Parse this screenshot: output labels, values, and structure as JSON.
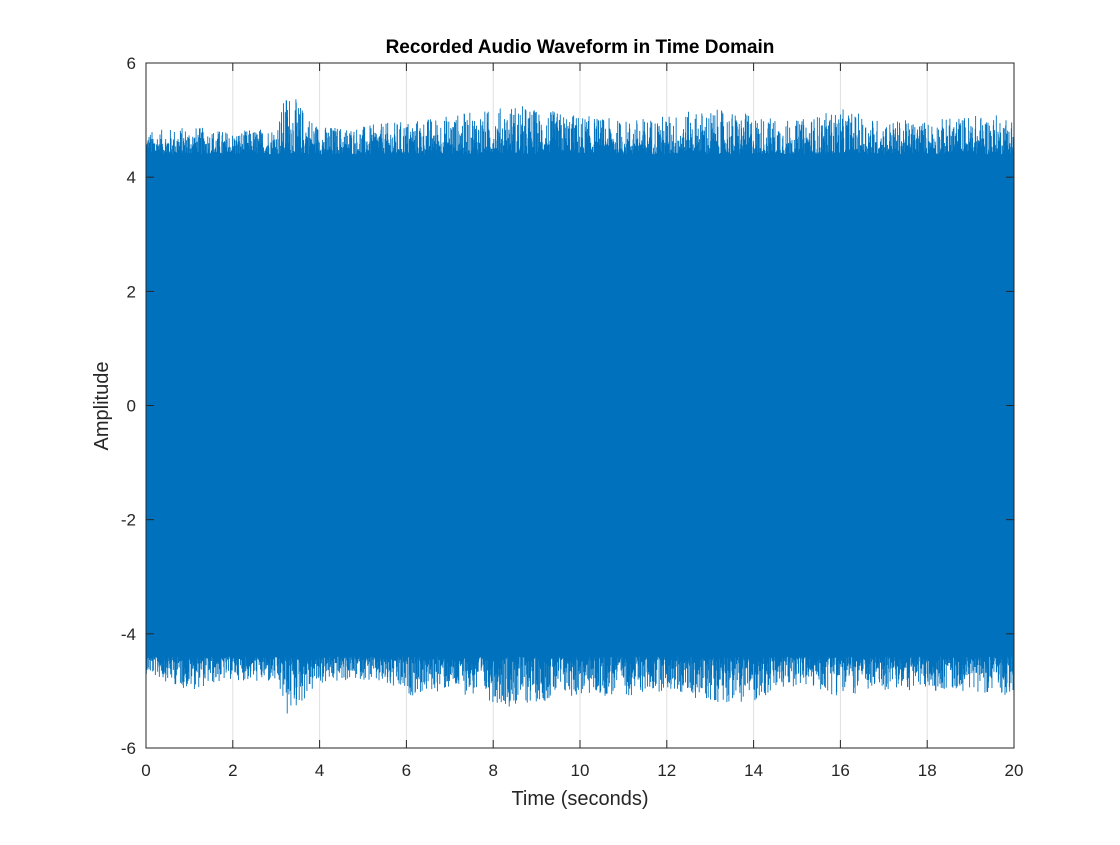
{
  "chart_data": {
    "type": "line",
    "title": "Recorded Audio Waveform in Time Domain",
    "xlabel": "Time (seconds)",
    "ylabel": "Amplitude",
    "xlim": [
      0,
      20
    ],
    "ylim": [
      -6,
      6
    ],
    "xticks": [
      "0",
      "2",
      "4",
      "6",
      "8",
      "10",
      "12",
      "14",
      "16",
      "18",
      "20"
    ],
    "yticks": [
      "-6",
      "-4",
      "-2",
      "0",
      "2",
      "4",
      "6"
    ],
    "grid": true,
    "legend": "none",
    "series": [
      {
        "color": "#0072BD",
        "description": "dense noise-like waveform filling the band; envelope samples in data units",
        "envelope_t": [
          0,
          1,
          2,
          3,
          3.25,
          4,
          5,
          6,
          7,
          8,
          8.5,
          9,
          10,
          11,
          12,
          13,
          14,
          15,
          16,
          17,
          18,
          19,
          20
        ],
        "envelope_max": [
          4.8,
          4.9,
          4.8,
          4.9,
          5.55,
          4.9,
          4.9,
          5.0,
          5.1,
          5.2,
          5.3,
          5.2,
          5.1,
          5.0,
          5.1,
          5.2,
          5.1,
          5.0,
          5.2,
          5.0,
          5.0,
          5.1,
          5.1
        ],
        "envelope_min": [
          -4.7,
          -5.0,
          -4.8,
          -4.9,
          -5.5,
          -4.9,
          -4.8,
          -5.1,
          -5.0,
          -5.2,
          -5.3,
          -5.2,
          -5.1,
          -5.1,
          -5.0,
          -5.2,
          -5.2,
          -4.9,
          -5.1,
          -5.0,
          -5.0,
          -5.0,
          -5.1
        ],
        "core_amplitude": 4.4
      }
    ]
  }
}
